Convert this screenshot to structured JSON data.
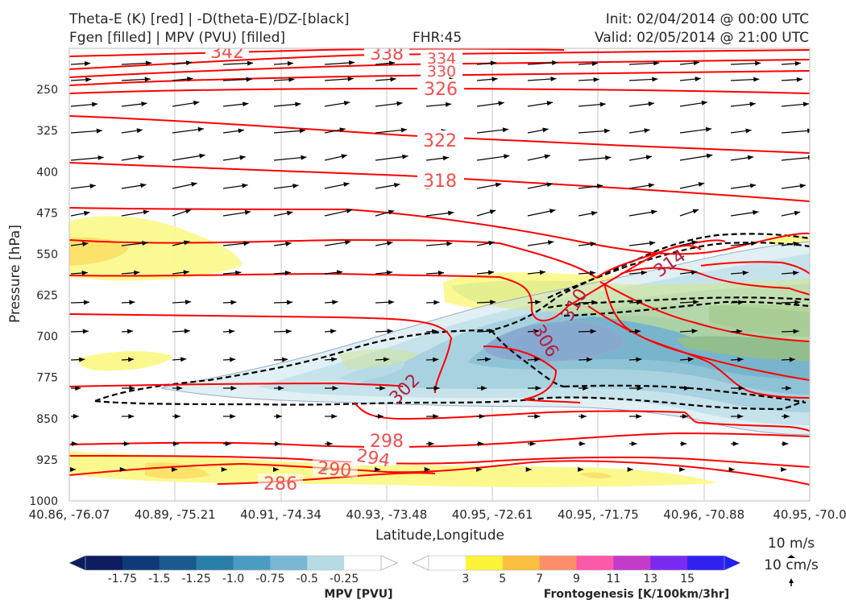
{
  "header": {
    "line1_left": "Theta-E (K) [red] | -D(theta-E)/DZ-[black]",
    "line2_left": "Fgen [filled] | MPV (PVU) [filled]",
    "fhr": "FHR:45",
    "init": "Init: 02/04/2014 @ 00:00 UTC",
    "valid": "Valid: 02/05/2014 @ 21:00 UTC"
  },
  "colors": {
    "theta_e": "#ff0000",
    "stability": "#000000",
    "theta_e_label": "#f05050",
    "theta_e_label_inner": "#b02040",
    "mpv_scale": [
      "#0c1c5e",
      "#0f3a78",
      "#1a5a8e",
      "#2a7fa8",
      "#4a9dc0",
      "#7ab8d2",
      "#b7dbe6",
      "#ffffff"
    ],
    "fgen_scale": [
      "#ffffff",
      "#fbf43a",
      "#fcc040",
      "#fc8e6a",
      "#fb5aa8",
      "#c43ac8",
      "#7a2af0",
      "#3020f0"
    ]
  },
  "chart_data": {
    "type": "cross-section",
    "xlabel": "Latitude,Longitude",
    "ylabel": "Pressure [hPa]",
    "ylim": [
      1000,
      175
    ],
    "y_ticks": [
      "250",
      "325",
      "400",
      "475",
      "550",
      "625",
      "700",
      "775",
      "850",
      "925",
      "1000"
    ],
    "x_ticks": [
      "40.86, -76.07",
      "40.89, -75.21",
      "40.91, -74.34",
      "40.93, -73.48",
      "40.95, -72.61",
      "40.95, -71.75",
      "40.96, -70.88",
      "40.95, -70.0"
    ],
    "theta_e_contour_labels": [
      "342",
      "338",
      "334",
      "330",
      "326",
      "322",
      "318",
      "314",
      "310",
      "306",
      "302",
      "298",
      "294",
      "290",
      "286"
    ],
    "mpv_colorbar": {
      "label": "MPV [PVU]",
      "ticks": [
        "-1.75",
        "-1.5",
        "-1.25",
        "-1.0",
        "-0.75",
        "-0.5",
        "-0.25"
      ]
    },
    "fgen_colorbar": {
      "label": "Frontogenesis [K/100km/3hr]",
      "ticks": [
        "3",
        "5",
        "7",
        "9",
        "11",
        "13",
        "15"
      ]
    },
    "wind_reference": {
      "horizontal": "10 m/s",
      "vertical": "10 cm/s"
    },
    "grid": true
  }
}
